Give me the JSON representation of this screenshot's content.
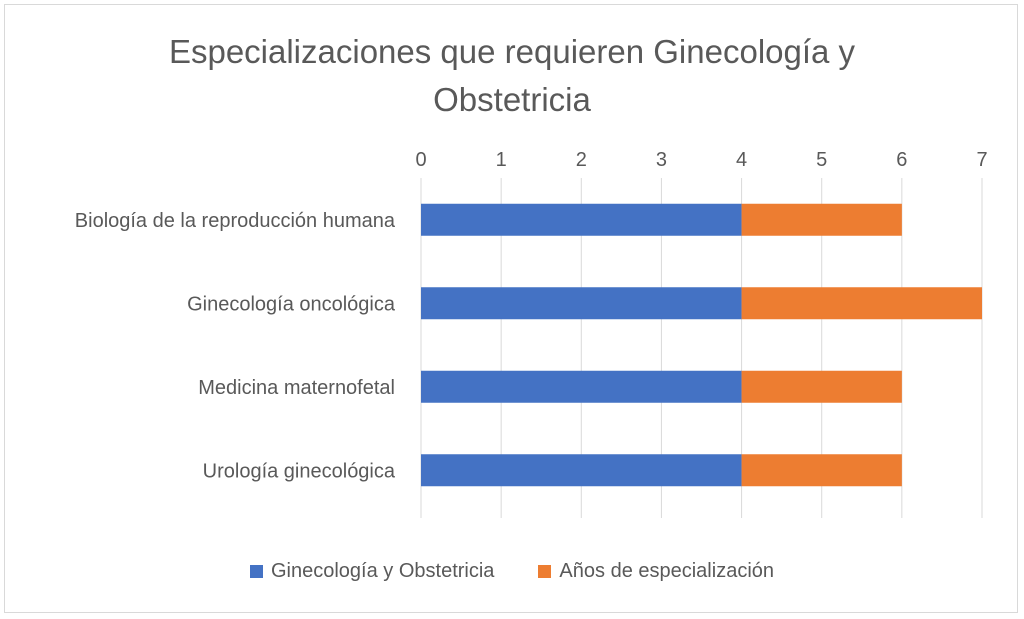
{
  "chart_data": {
    "type": "bar",
    "orientation": "horizontal",
    "stacked": true,
    "title": "Especializaciones que requieren Ginecología y Obstetricia",
    "title_lines": [
      "Especializaciones que requieren Ginecología y",
      "Obstetricia"
    ],
    "categories": [
      "Biología de la reproducción humana",
      "Ginecología oncológica",
      "Medicina maternofetal",
      "Urología ginecológica"
    ],
    "series": [
      {
        "name": "Ginecología y Obstetricia",
        "color": "#4472c4",
        "values": [
          4,
          4,
          4,
          4
        ]
      },
      {
        "name": "Años de especialización",
        "color": "#ed7d31",
        "values": [
          2,
          3,
          2,
          2
        ]
      }
    ],
    "xlim": [
      0,
      7
    ],
    "xticks": [
      "0",
      "1",
      "2",
      "3",
      "4",
      "5",
      "6",
      "7"
    ],
    "xaxis_position": "top",
    "grid": true,
    "legend_position": "bottom"
  }
}
